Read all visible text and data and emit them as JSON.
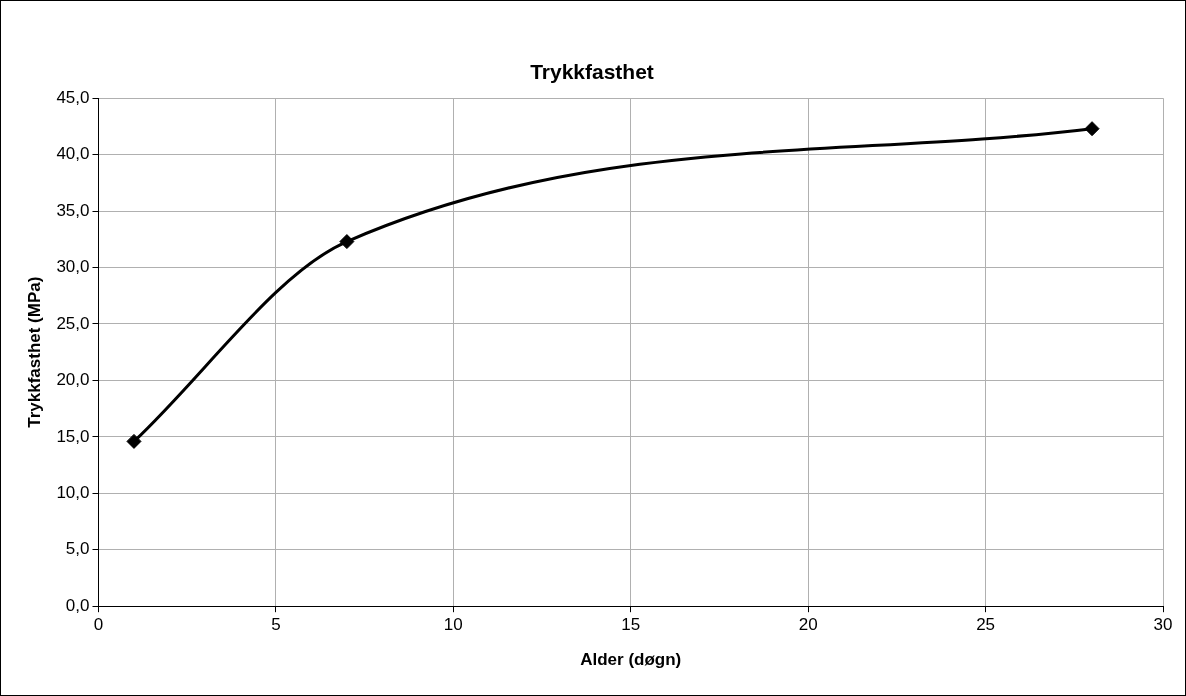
{
  "chart_data": {
    "type": "line",
    "title": "Trykkfasthet",
    "xlabel": "Alder (døgn)",
    "ylabel": "Trykkfasthet (MPa)",
    "x": [
      1,
      7,
      28
    ],
    "series": [
      {
        "color": "#000000",
        "values": [
          14.6,
          32.3,
          42.3
        ]
      }
    ],
    "marker": "diamond",
    "line_style": "solid",
    "grid": true,
    "legend": false,
    "xlim": [
      0,
      30
    ],
    "xticks": [
      0,
      5,
      10,
      15,
      20,
      25,
      30
    ],
    "ylim": [
      0,
      45
    ],
    "yticks": [
      {
        "value": 0,
        "label": "0,0"
      },
      {
        "value": 5,
        "label": "5,0"
      },
      {
        "value": 10,
        "label": "10,0"
      },
      {
        "value": 15,
        "label": "15,0"
      },
      {
        "value": 20,
        "label": "20,0"
      },
      {
        "value": 25,
        "label": "25,0"
      },
      {
        "value": 30,
        "label": "30,0"
      },
      {
        "value": 35,
        "label": "35,0"
      },
      {
        "value": 40,
        "label": "40,0"
      },
      {
        "value": 45,
        "label": "45,0"
      }
    ]
  }
}
